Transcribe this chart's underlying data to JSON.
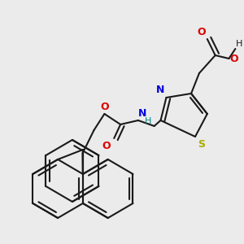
{
  "background_color": "#ebebeb",
  "bond_color": "#1a1a1a",
  "bond_width": 1.5,
  "dbo": 0.012,
  "figsize": [
    3.0,
    3.0
  ],
  "dpi": 100,
  "colors": {
    "N": "#0000dd",
    "S": "#aaaa00",
    "O": "#dd0000",
    "H": "#008888",
    "C": "#1a1a1a"
  }
}
